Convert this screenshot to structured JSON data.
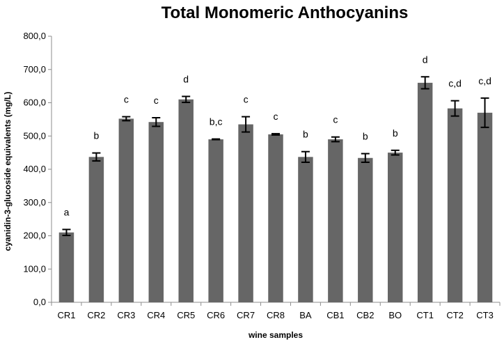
{
  "chart_data": {
    "type": "bar",
    "title": "Total Monomeric Anthocyanins",
    "xlabel": "wine samples",
    "ylabel": "cyanidin-3-glucoside equivalents (mg/L)",
    "ylim": [
      0,
      800
    ],
    "yticks": [
      "0,0",
      "100,0",
      "200,0",
      "300,0",
      "400,0",
      "500,0",
      "600,0",
      "700,0",
      "800,0"
    ],
    "grid": false,
    "bar_color": "#666666",
    "categories": [
      "CR1",
      "CR2",
      "CR3",
      "CR4",
      "CR5",
      "CR6",
      "CR7",
      "CR8",
      "BA",
      "CB1",
      "CB2",
      "BO",
      "CT1",
      "CT2",
      "CT3"
    ],
    "values": [
      210,
      437,
      552,
      542,
      610,
      490,
      535,
      505,
      437,
      490,
      434,
      450,
      660,
      583,
      570
    ],
    "errors": [
      9,
      12,
      6,
      13,
      9,
      1,
      23,
      2,
      16,
      7,
      13,
      7,
      18,
      23,
      44
    ],
    "annotations": [
      "a",
      "b",
      "c",
      "c",
      "d",
      "b,c",
      "c",
      "c",
      "b",
      "c",
      "b",
      "b",
      "d",
      "c,d",
      "c,d"
    ]
  }
}
